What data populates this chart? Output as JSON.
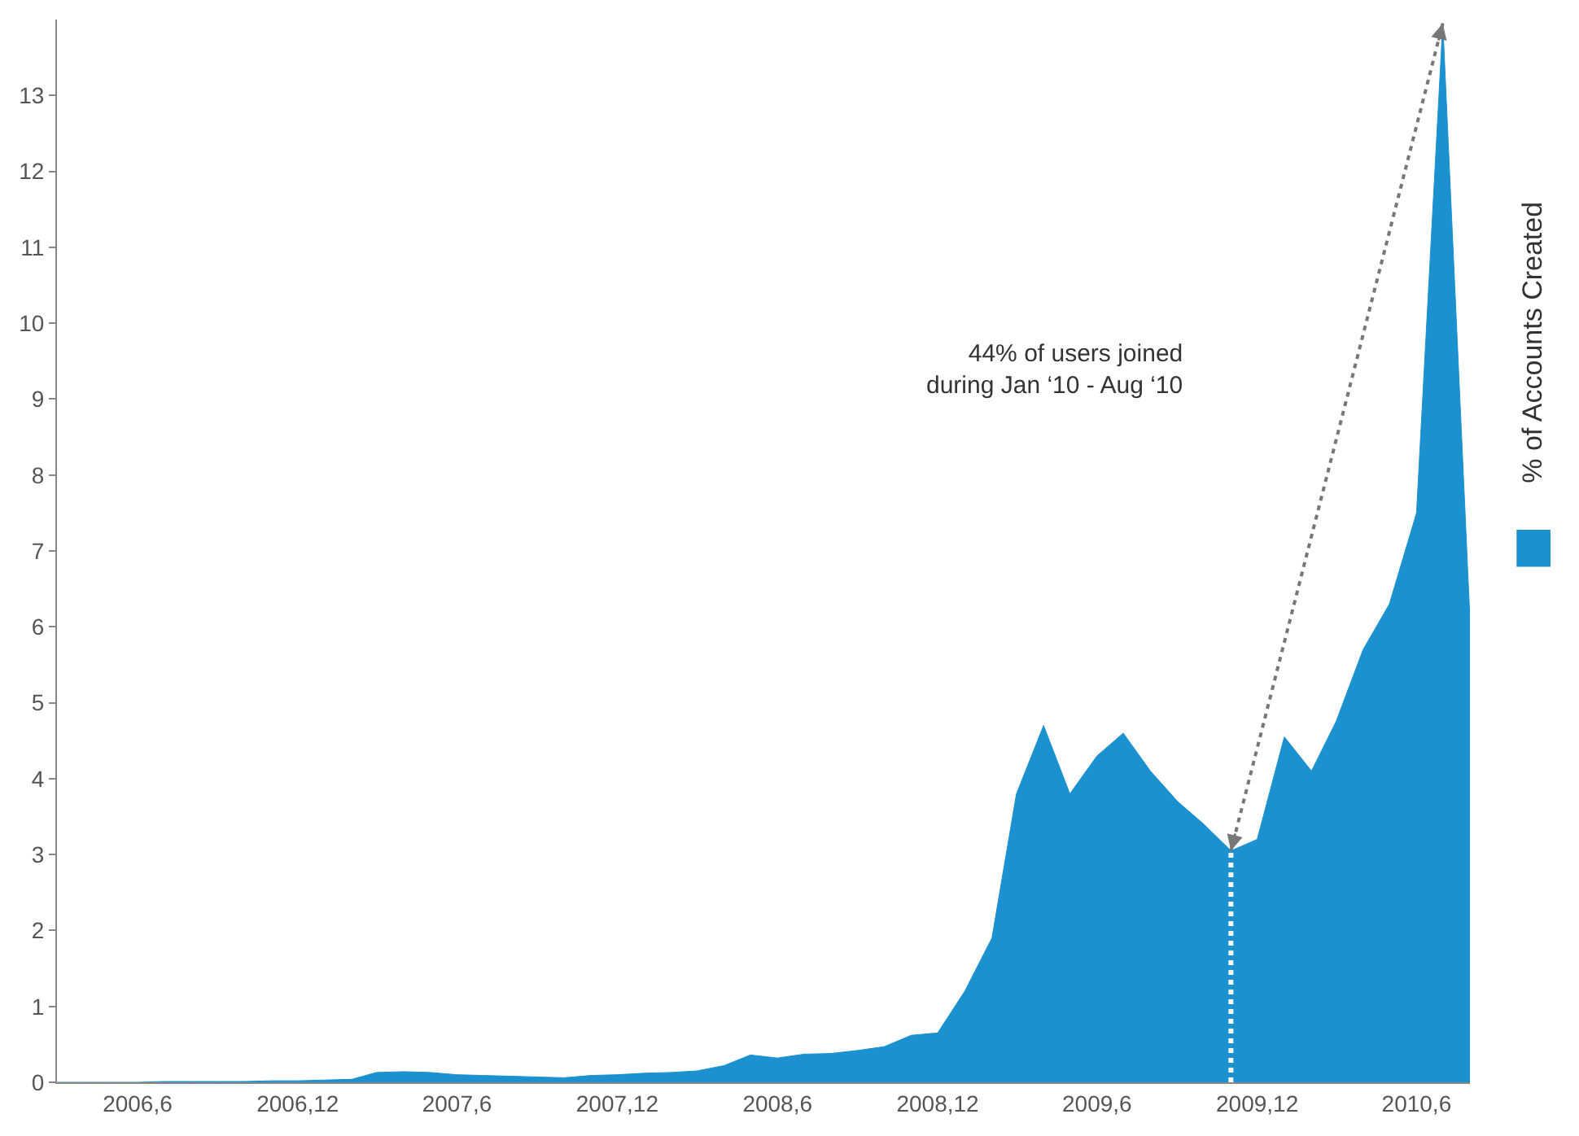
{
  "chart_data": {
    "type": "area",
    "ylabel": null,
    "x": [
      "2006-03",
      "2006-04",
      "2006-05",
      "2006-06",
      "2006-07",
      "2006-08",
      "2006-09",
      "2006-10",
      "2006-11",
      "2006-12",
      "2007-01",
      "2007-02",
      "2007-03",
      "2007-04",
      "2007-05",
      "2007-06",
      "2007-07",
      "2007-08",
      "2007-09",
      "2007-10",
      "2007-11",
      "2007-12",
      "2008-01",
      "2008-02",
      "2008-03",
      "2008-04",
      "2008-05",
      "2008-06",
      "2008-07",
      "2008-08",
      "2008-09",
      "2008-10",
      "2008-11",
      "2008-12",
      "2009-01",
      "2009-02",
      "2009-03",
      "2009-04",
      "2009-05",
      "2009-06",
      "2009-07",
      "2009-08",
      "2009-09",
      "2009-10",
      "2009-11",
      "2009-12",
      "2010-01",
      "2010-02",
      "2010-03",
      "2010-04",
      "2010-05",
      "2010-06",
      "2010-07",
      "2010-08"
    ],
    "series": [
      {
        "name": "% of Accounts Created",
        "color": "#1b91cf",
        "values": [
          0,
          0,
          0,
          0,
          0.01,
          0.01,
          0.01,
          0.01,
          0.02,
          0.02,
          0.03,
          0.04,
          0.13,
          0.14,
          0.13,
          0.1,
          0.09,
          0.08,
          0.07,
          0.06,
          0.09,
          0.1,
          0.12,
          0.13,
          0.15,
          0.22,
          0.36,
          0.32,
          0.37,
          0.38,
          0.42,
          0.47,
          0.62,
          0.65,
          1.2,
          1.9,
          3.8,
          4.7,
          3.8,
          4.3,
          4.6,
          4.1,
          3.7,
          3.4,
          3.05,
          3.2,
          4.55,
          4.1,
          4.75,
          5.7,
          6.3,
          7.5,
          13.95,
          6.1
        ]
      }
    ],
    "xlim": [
      "2006-03",
      "2010-08"
    ],
    "xticks": [
      {
        "value": "2006-06",
        "label": "2006,6"
      },
      {
        "value": "2006-12",
        "label": "2006,12"
      },
      {
        "value": "2007-06",
        "label": "2007,6"
      },
      {
        "value": "2007-12",
        "label": "2007,12"
      },
      {
        "value": "2008-06",
        "label": "2008,6"
      },
      {
        "value": "2008-12",
        "label": "2008,12"
      },
      {
        "value": "2009-06",
        "label": "2009,6"
      },
      {
        "value": "2009-12",
        "label": "2009,12"
      },
      {
        "value": "2010-06",
        "label": "2010,6"
      }
    ],
    "ylim": [
      0,
      14
    ],
    "yticks": [
      0,
      1,
      2,
      3,
      4,
      5,
      6,
      7,
      8,
      9,
      10,
      11,
      12,
      13
    ],
    "ref_lines": [
      {
        "axis": "x",
        "value": "2009-11",
        "color": "#ffffff",
        "line_style": "dotted"
      }
    ],
    "annotations": [
      "44% of users joined\nduring Jan ‘10 - Aug ‘10"
    ],
    "legend": "right"
  }
}
